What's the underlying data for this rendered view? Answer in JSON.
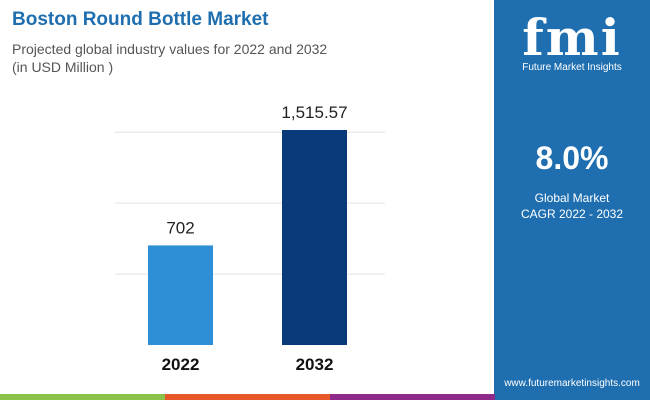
{
  "header": {
    "title": "Boston Round Bottle Market",
    "subtitle": "Projected global industry values for 2022 and 2032",
    "unit": "(in USD Million )"
  },
  "panel": {
    "logo": "fmi",
    "logo_text": "Future Market Insights",
    "cagr_value": "8.0%",
    "cagr_label_1": "Global Market",
    "cagr_label_2": "CAGR 2022 - 2032",
    "url": "www.futuremarketinsights.com",
    "color": "#1f6fb0"
  },
  "chart_data": {
    "type": "bar",
    "categories": [
      "2022",
      "2032"
    ],
    "values": [
      702,
      1515.57
    ],
    "data_labels": [
      "702",
      "1,515.57"
    ],
    "colors": [
      "#2e8fd6",
      "#0a3a7a"
    ],
    "ylim": [
      0,
      1515.57
    ],
    "grid": true,
    "title": "",
    "xlabel": "",
    "ylabel": ""
  },
  "stripes": [
    "#8bc34a",
    "#e8572a",
    "#8e2a8a",
    "#1f6fb0"
  ]
}
